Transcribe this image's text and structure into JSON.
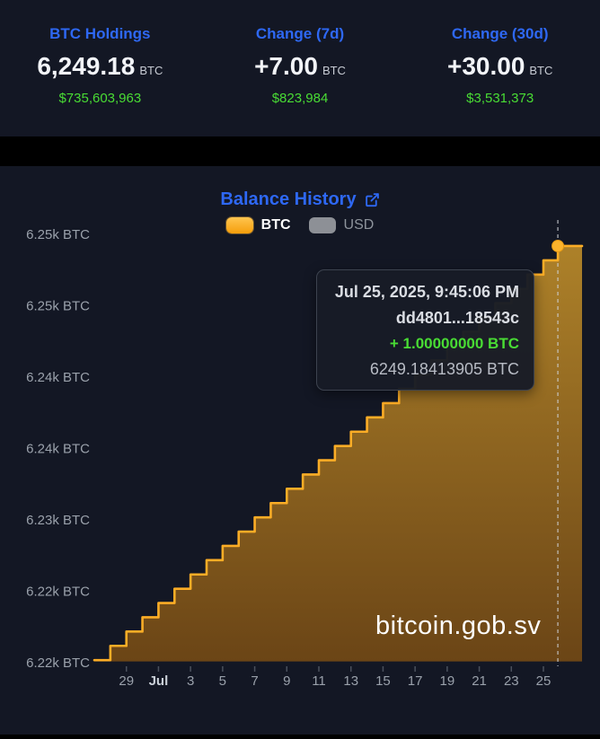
{
  "colors": {
    "accent_blue": "#2E68F4",
    "positive_green": "#49DC34",
    "line_orange": "#FCAD26",
    "marker_orange": "#FCB32C",
    "fill_top": "#AD8129",
    "fill_bottom": "#6B4516",
    "bg_dark": "#131724",
    "tick_gray": "#9AA1AB",
    "tick_emphasis": "#CAD0D8",
    "crosshair": "#CFD2D8",
    "usd_gray": "#8D9096"
  },
  "icons": {
    "external_link": "external-link-icon"
  },
  "header": {
    "stats": [
      {
        "label": "BTC Holdings",
        "value": "6,249.18",
        "unit": "BTC",
        "usd": "$735,603,963"
      },
      {
        "label": "Change (7d)",
        "value": "+7.00",
        "unit": "BTC",
        "usd": "$823,984"
      },
      {
        "label": "Change (30d)",
        "value": "+30.00",
        "unit": "BTC",
        "usd": "$3,531,373"
      }
    ]
  },
  "chart": {
    "title": "Balance History",
    "legend": {
      "btc": {
        "label": "BTC",
        "active": true
      },
      "usd": {
        "label": "USD",
        "active": false
      }
    },
    "tooltip": {
      "timestamp": "Jul 25, 2025, 9:45:06 PM",
      "txid": "dd4801...18543c",
      "amount": "+ 1.00000000 BTC",
      "balance": "6249.18413905 BTC"
    },
    "watermark": "bitcoin.gob.sv"
  },
  "chart_data": {
    "type": "area",
    "step": true,
    "series_name": "BTC Balance",
    "grid": "off",
    "legend_position": "top-center",
    "dates": [
      "Jun 27",
      "Jun 28",
      "Jun 29",
      "Jun 30",
      "Jul 1",
      "Jul 2",
      "Jul 3",
      "Jul 4",
      "Jul 5",
      "Jul 6",
      "Jul 7",
      "Jul 8",
      "Jul 9",
      "Jul 10",
      "Jul 11",
      "Jul 12",
      "Jul 13",
      "Jul 14",
      "Jul 15",
      "Jul 16",
      "Jul 17",
      "Jul 18",
      "Jul 19",
      "Jul 20",
      "Jul 21",
      "Jul 22",
      "Jul 23",
      "Jul 24",
      "Jul 25"
    ],
    "values": [
      6220.18,
      6221.18,
      6222.18,
      6223.18,
      6224.18,
      6225.18,
      6226.18,
      6227.18,
      6228.18,
      6229.18,
      6230.18,
      6231.18,
      6232.18,
      6233.18,
      6234.18,
      6235.18,
      6236.18,
      6237.18,
      6238.18,
      6239.18,
      6240.18,
      6241.18,
      6242.18,
      6243.18,
      6244.18,
      6245.18,
      6246.18,
      6247.18,
      6248.18
    ],
    "current_point": {
      "label": "Jul 25, 2025, 9:45:06 PM",
      "value": 6249.18413905,
      "day_offset": 28.9
    },
    "ylabel": "BTC",
    "ylim": [
      6218,
      6252
    ],
    "y_axis": {
      "tick_values": [
        6220,
        6225,
        6230,
        6235,
        6240,
        6245,
        6250
      ],
      "tick_labels": [
        "6.22k BTC",
        "6.22k BTC",
        "6.23k BTC",
        "6.24k BTC",
        "6.24k BTC",
        "6.25k BTC",
        "6.25k BTC"
      ]
    },
    "x_axis": {
      "ticks": [
        {
          "label": "29",
          "day": 2
        },
        {
          "label": "Jul",
          "day": 4,
          "emphasis": true
        },
        {
          "label": "3",
          "day": 6
        },
        {
          "label": "5",
          "day": 8
        },
        {
          "label": "7",
          "day": 10
        },
        {
          "label": "9",
          "day": 12
        },
        {
          "label": "11",
          "day": 14
        },
        {
          "label": "13",
          "day": 16
        },
        {
          "label": "15",
          "day": 18
        },
        {
          "label": "17",
          "day": 20
        },
        {
          "label": "19",
          "day": 22
        },
        {
          "label": "21",
          "day": 24
        },
        {
          "label": "23",
          "day": 26
        },
        {
          "label": "25",
          "day": 28
        }
      ]
    }
  }
}
